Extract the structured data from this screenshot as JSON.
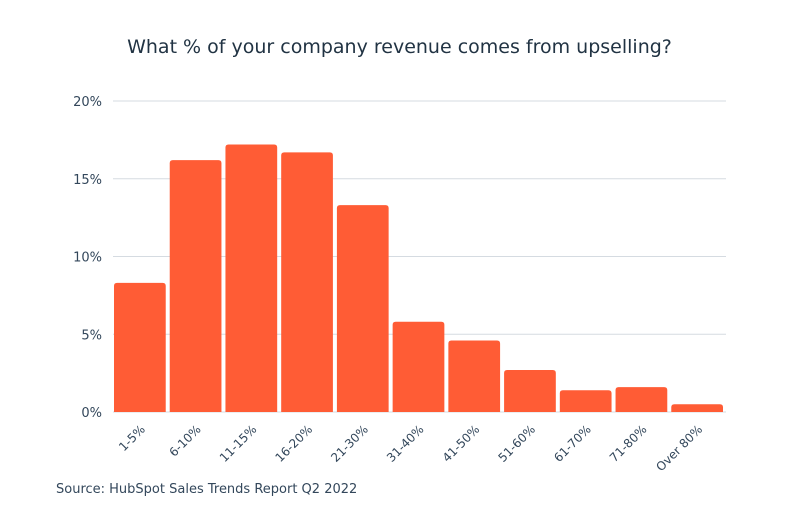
{
  "chart_data": {
    "type": "bar",
    "title": "What % of your company revenue comes from upselling?",
    "categories": [
      "1-5%",
      "6-10%",
      "11-15%",
      "16-20%",
      "21-30%",
      "31-40%",
      "41-50%",
      "51-60%",
      "61-70%",
      "71-80%",
      "Over 80%"
    ],
    "values": [
      8.3,
      16.2,
      17.2,
      16.7,
      13.3,
      5.8,
      4.6,
      2.7,
      1.4,
      1.6,
      0.5
    ],
    "ylim": [
      0,
      20
    ],
    "yticks": [
      "0%",
      "5%",
      "10%",
      "15%",
      "20%"
    ],
    "ytick_values": [
      0,
      5,
      10,
      15,
      20
    ],
    "xlabel": "",
    "ylabel": "",
    "grid": true,
    "bar_color": "#ff5c35",
    "source": "Source: HubSpot Sales Trends Report Q2 2022"
  }
}
